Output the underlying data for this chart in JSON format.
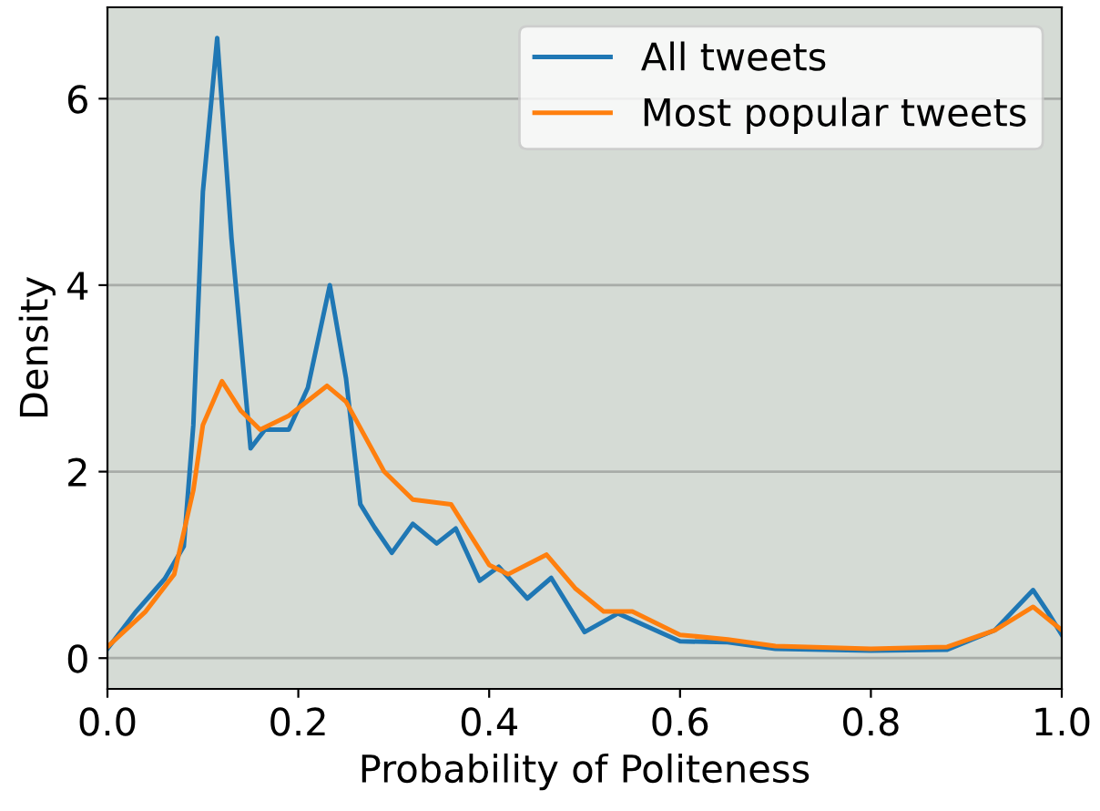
{
  "chart_data": {
    "type": "line",
    "xlabel": "Probability of Politeness",
    "ylabel": "Density",
    "xlim": [
      0.0,
      1.0
    ],
    "xticks": [
      {
        "value": 0,
        "label": "0.0"
      },
      0.2,
      0.4,
      0.6,
      0.8,
      {
        "value": 1,
        "label": "1.0"
      }
    ],
    "ylim": [
      -0.33,
      6.98
    ],
    "yticks": [
      0,
      2,
      4,
      6
    ],
    "grid": "y",
    "legend": "top right",
    "marker": "none",
    "line_style": "solid",
    "series": [
      {
        "name": "All tweets",
        "color": "#1f77b4",
        "x": [
          0.0,
          0.03,
          0.06,
          0.08,
          0.09,
          0.1,
          0.115,
          0.13,
          0.15,
          0.165,
          0.19,
          0.21,
          0.233,
          0.25,
          0.265,
          0.28,
          0.298,
          0.32,
          0.345,
          0.365,
          0.39,
          0.41,
          0.44,
          0.465,
          0.5,
          0.535,
          0.6,
          0.65,
          0.7,
          0.8,
          0.88,
          0.93,
          0.97,
          0.985,
          1.0
        ],
        "values": [
          0.1,
          0.5,
          0.85,
          1.2,
          2.5,
          5.0,
          6.65,
          4.5,
          2.25,
          2.45,
          2.45,
          2.9,
          4.0,
          3.0,
          1.65,
          1.4,
          1.13,
          1.44,
          1.23,
          1.39,
          0.83,
          0.98,
          0.64,
          0.86,
          0.28,
          0.48,
          0.18,
          0.17,
          0.1,
          0.08,
          0.09,
          0.3,
          0.73,
          0.5,
          0.25
        ]
      },
      {
        "name": "Most popular tweets",
        "color": "#ff7f0e",
        "x": [
          0.0,
          0.04,
          0.07,
          0.09,
          0.1,
          0.12,
          0.14,
          0.16,
          0.19,
          0.23,
          0.25,
          0.29,
          0.32,
          0.36,
          0.4,
          0.42,
          0.46,
          0.49,
          0.52,
          0.55,
          0.6,
          0.65,
          0.7,
          0.8,
          0.88,
          0.93,
          0.97,
          1.0
        ],
        "values": [
          0.12,
          0.5,
          0.9,
          1.8,
          2.5,
          2.97,
          2.65,
          2.45,
          2.6,
          2.92,
          2.75,
          2.0,
          1.7,
          1.65,
          1.0,
          0.9,
          1.11,
          0.75,
          0.5,
          0.5,
          0.25,
          0.2,
          0.13,
          0.1,
          0.12,
          0.3,
          0.55,
          0.3
        ]
      }
    ]
  }
}
